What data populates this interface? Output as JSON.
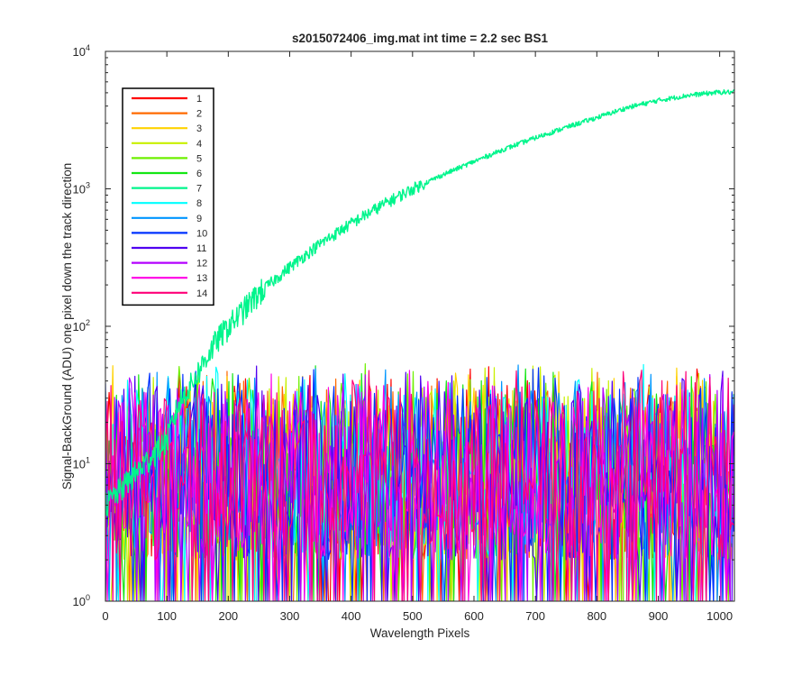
{
  "chart_data": {
    "type": "line",
    "title": "s2015072406_img.mat int time = 2.2 sec   BS1",
    "xlabel": "Wavelength Pixels",
    "ylabel": "Signal-BackGround (ADU) one pixel down the track direction",
    "xlim": [
      0,
      1024
    ],
    "ylim": [
      1,
      10000
    ],
    "yscale": "log",
    "x_ticks": [
      "0",
      "100",
      "200",
      "300",
      "400",
      "500",
      "600",
      "700",
      "800",
      "900",
      "1000"
    ],
    "y_ticks": [
      {
        "base": "10",
        "exp": "0"
      },
      {
        "base": "10",
        "exp": "1"
      },
      {
        "base": "10",
        "exp": "2"
      },
      {
        "base": "10",
        "exp": "3"
      },
      {
        "base": "10",
        "exp": "4"
      }
    ],
    "grid": false,
    "legend_position": "top-left",
    "series": [
      {
        "name": "1",
        "color": "#ff0000",
        "profile": "noise"
      },
      {
        "name": "2",
        "color": "#ff6a00",
        "profile": "noise"
      },
      {
        "name": "3",
        "color": "#ffd200",
        "profile": "noise"
      },
      {
        "name": "4",
        "color": "#c8f000",
        "profile": "noise"
      },
      {
        "name": "5",
        "color": "#6ef000",
        "profile": "noise"
      },
      {
        "name": "6",
        "color": "#14e614",
        "profile": "noise"
      },
      {
        "name": "7",
        "color": "#00f58c",
        "profile": "signal",
        "points": [
          [
            0,
            5
          ],
          [
            100,
            15
          ],
          [
            120,
            28
          ],
          [
            140,
            38
          ],
          [
            160,
            55
          ],
          [
            180,
            78
          ],
          [
            200,
            100
          ],
          [
            250,
            175
          ],
          [
            300,
            270
          ],
          [
            350,
            400
          ],
          [
            400,
            560
          ],
          [
            450,
            760
          ],
          [
            500,
            1000
          ],
          [
            550,
            1270
          ],
          [
            600,
            1580
          ],
          [
            650,
            1950
          ],
          [
            700,
            2350
          ],
          [
            750,
            2800
          ],
          [
            800,
            3300
          ],
          [
            850,
            3900
          ],
          [
            900,
            4400
          ],
          [
            950,
            4800
          ],
          [
            1000,
            5050
          ],
          [
            1024,
            5050
          ]
        ]
      },
      {
        "name": "8",
        "color": "#00ffff",
        "profile": "noise"
      },
      {
        "name": "9",
        "color": "#0096ff",
        "profile": "noise"
      },
      {
        "name": "10",
        "color": "#0032ff",
        "profile": "noise"
      },
      {
        "name": "11",
        "color": "#5000f0",
        "profile": "noise"
      },
      {
        "name": "12",
        "color": "#b400ff",
        "profile": "noise"
      },
      {
        "name": "13",
        "color": "#ff00e6",
        "profile": "noise"
      },
      {
        "name": "14",
        "color": "#ff0078",
        "profile": "noise"
      }
    ],
    "noise_range": [
      1,
      55
    ]
  }
}
